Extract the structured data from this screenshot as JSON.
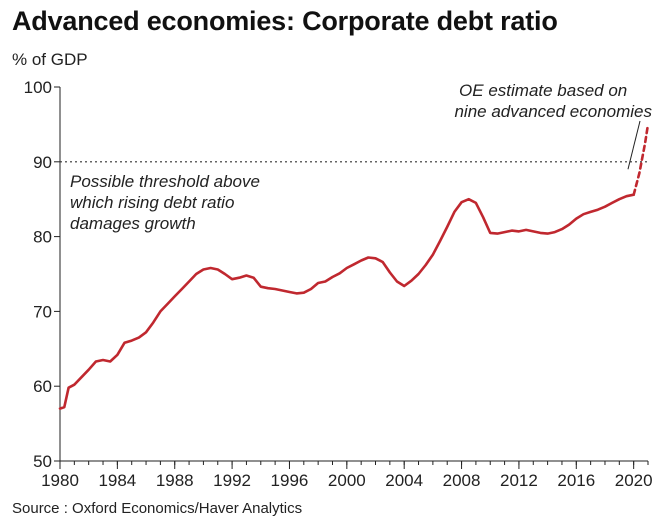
{
  "header": {
    "title": "Advanced economies: Corporate debt ratio",
    "unit": "% of GDP"
  },
  "footer": {
    "source": "Source : Oxford Economics/Haver Analytics"
  },
  "colors": {
    "series": "#c0282f",
    "threshold": "#333333",
    "axis": "#222222"
  },
  "chart_data": {
    "type": "line",
    "title": "Advanced economies: Corporate debt ratio",
    "xlabel": "",
    "ylabel": "% of GDP",
    "xlim": [
      1980,
      2021
    ],
    "ylim": [
      50,
      100
    ],
    "x_ticks": [
      "1980",
      "1984",
      "1988",
      "1992",
      "1996",
      "2000",
      "2004",
      "2008",
      "2012",
      "2016",
      "2020"
    ],
    "y_ticks": [
      "50",
      "60",
      "70",
      "80",
      "90",
      "100"
    ],
    "grid": false,
    "series": [
      {
        "style": "solid",
        "x": [
          1980.0,
          1980.3,
          1980.6,
          1981.0,
          1981.5,
          1982.0,
          1982.5,
          1983.0,
          1983.5,
          1984.0,
          1984.5,
          1985.0,
          1985.5,
          1986.0,
          1986.5,
          1987.0,
          1987.5,
          1988.0,
          1988.5,
          1989.0,
          1989.5,
          1990.0,
          1990.5,
          1991.0,
          1991.5,
          1992.0,
          1992.5,
          1993.0,
          1993.5,
          1994.0,
          1994.5,
          1995.0,
          1995.5,
          1996.0,
          1996.5,
          1997.0,
          1997.5,
          1998.0,
          1998.5,
          1999.0,
          1999.5,
          2000.0,
          2000.5,
          2001.0,
          2001.5,
          2002.0,
          2002.5,
          2003.0,
          2003.5,
          2004.0,
          2004.5,
          2005.0,
          2005.5,
          2006.0,
          2006.5,
          2007.0,
          2007.5,
          2008.0,
          2008.5,
          2009.0,
          2009.5,
          2010.0,
          2010.5,
          2011.0,
          2011.5,
          2012.0,
          2012.5,
          2013.0,
          2013.5,
          2014.0,
          2014.5,
          2015.0,
          2015.5,
          2016.0,
          2016.5,
          2017.0,
          2017.5,
          2018.0,
          2018.5,
          2019.0,
          2019.5,
          2020.0
        ],
        "y": [
          57.0,
          57.2,
          59.8,
          60.2,
          61.2,
          62.2,
          63.3,
          63.5,
          63.3,
          64.2,
          65.8,
          66.1,
          66.5,
          67.2,
          68.5,
          70.0,
          71.0,
          72.0,
          73.0,
          74.0,
          75.0,
          75.6,
          75.8,
          75.6,
          75.0,
          74.3,
          74.5,
          74.8,
          74.5,
          73.3,
          73.1,
          73.0,
          72.8,
          72.6,
          72.4,
          72.5,
          73.0,
          73.8,
          74.0,
          74.6,
          75.1,
          75.8,
          76.3,
          76.8,
          77.2,
          77.1,
          76.6,
          75.2,
          74.0,
          73.4,
          74.1,
          75.0,
          76.2,
          77.6,
          79.4,
          81.3,
          83.3,
          84.6,
          85.0,
          84.5,
          82.6,
          80.5,
          80.4,
          80.6,
          80.8,
          80.7,
          80.9,
          80.7,
          80.5,
          80.4,
          80.6,
          81.0,
          81.6,
          82.4,
          83.0,
          83.3,
          83.6,
          84.0,
          84.5,
          85.0,
          85.4,
          85.6
        ]
      },
      {
        "style": "dashed",
        "x": [
          2020.0,
          2020.4,
          2020.8,
          2021.0
        ],
        "y": [
          85.6,
          88.5,
          92.5,
          95.0
        ]
      }
    ],
    "reference_lines": [
      {
        "axis": "y",
        "value": 90,
        "style": "dotted"
      }
    ],
    "annotations": [
      {
        "lines": [
          "Possible threshold above",
          "which rising debt ratio",
          "damages growth"
        ]
      },
      {
        "lines": [
          "OE estimate based on",
          "nine advanced economies"
        ]
      }
    ]
  }
}
